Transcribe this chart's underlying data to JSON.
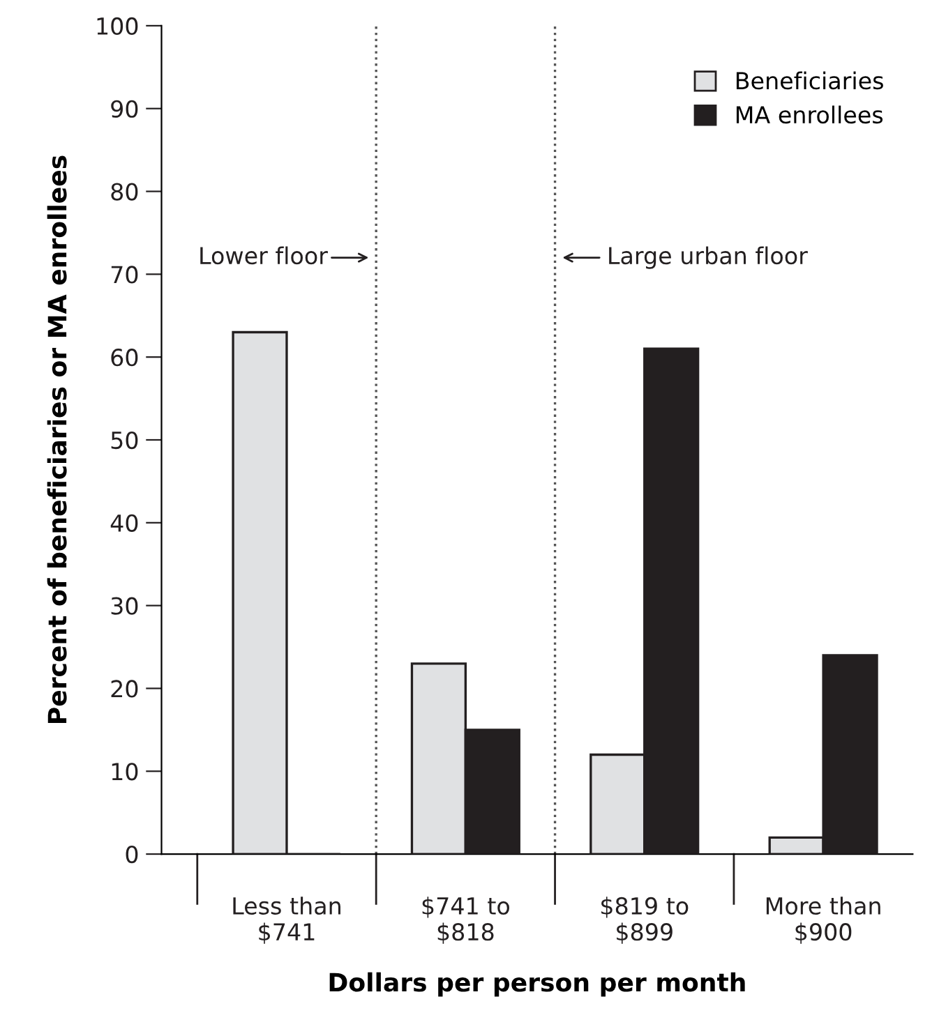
{
  "chart_data": {
    "type": "bar",
    "xlabel": "Dollars per person per month",
    "ylabel": "Percent of beneficiaries or MA enrollees",
    "categories": [
      "Less than\n$741",
      "$741 to\n$818",
      "$819 to\n$899",
      "More than\n$900"
    ],
    "series": [
      {
        "name": "Beneficiaries",
        "color": "#e0e1e3",
        "values": [
          63,
          23,
          12,
          2
        ]
      },
      {
        "name": "MA enrollees",
        "color": "#231f20",
        "values": [
          0,
          15,
          61,
          24
        ]
      }
    ],
    "ylim": [
      0,
      100
    ],
    "yticks": [
      0,
      10,
      20,
      30,
      40,
      50,
      60,
      70,
      80,
      90,
      100
    ],
    "annotations": [
      "Lower floor",
      "Large urban floor"
    ],
    "legend": "top right",
    "grid": false
  }
}
